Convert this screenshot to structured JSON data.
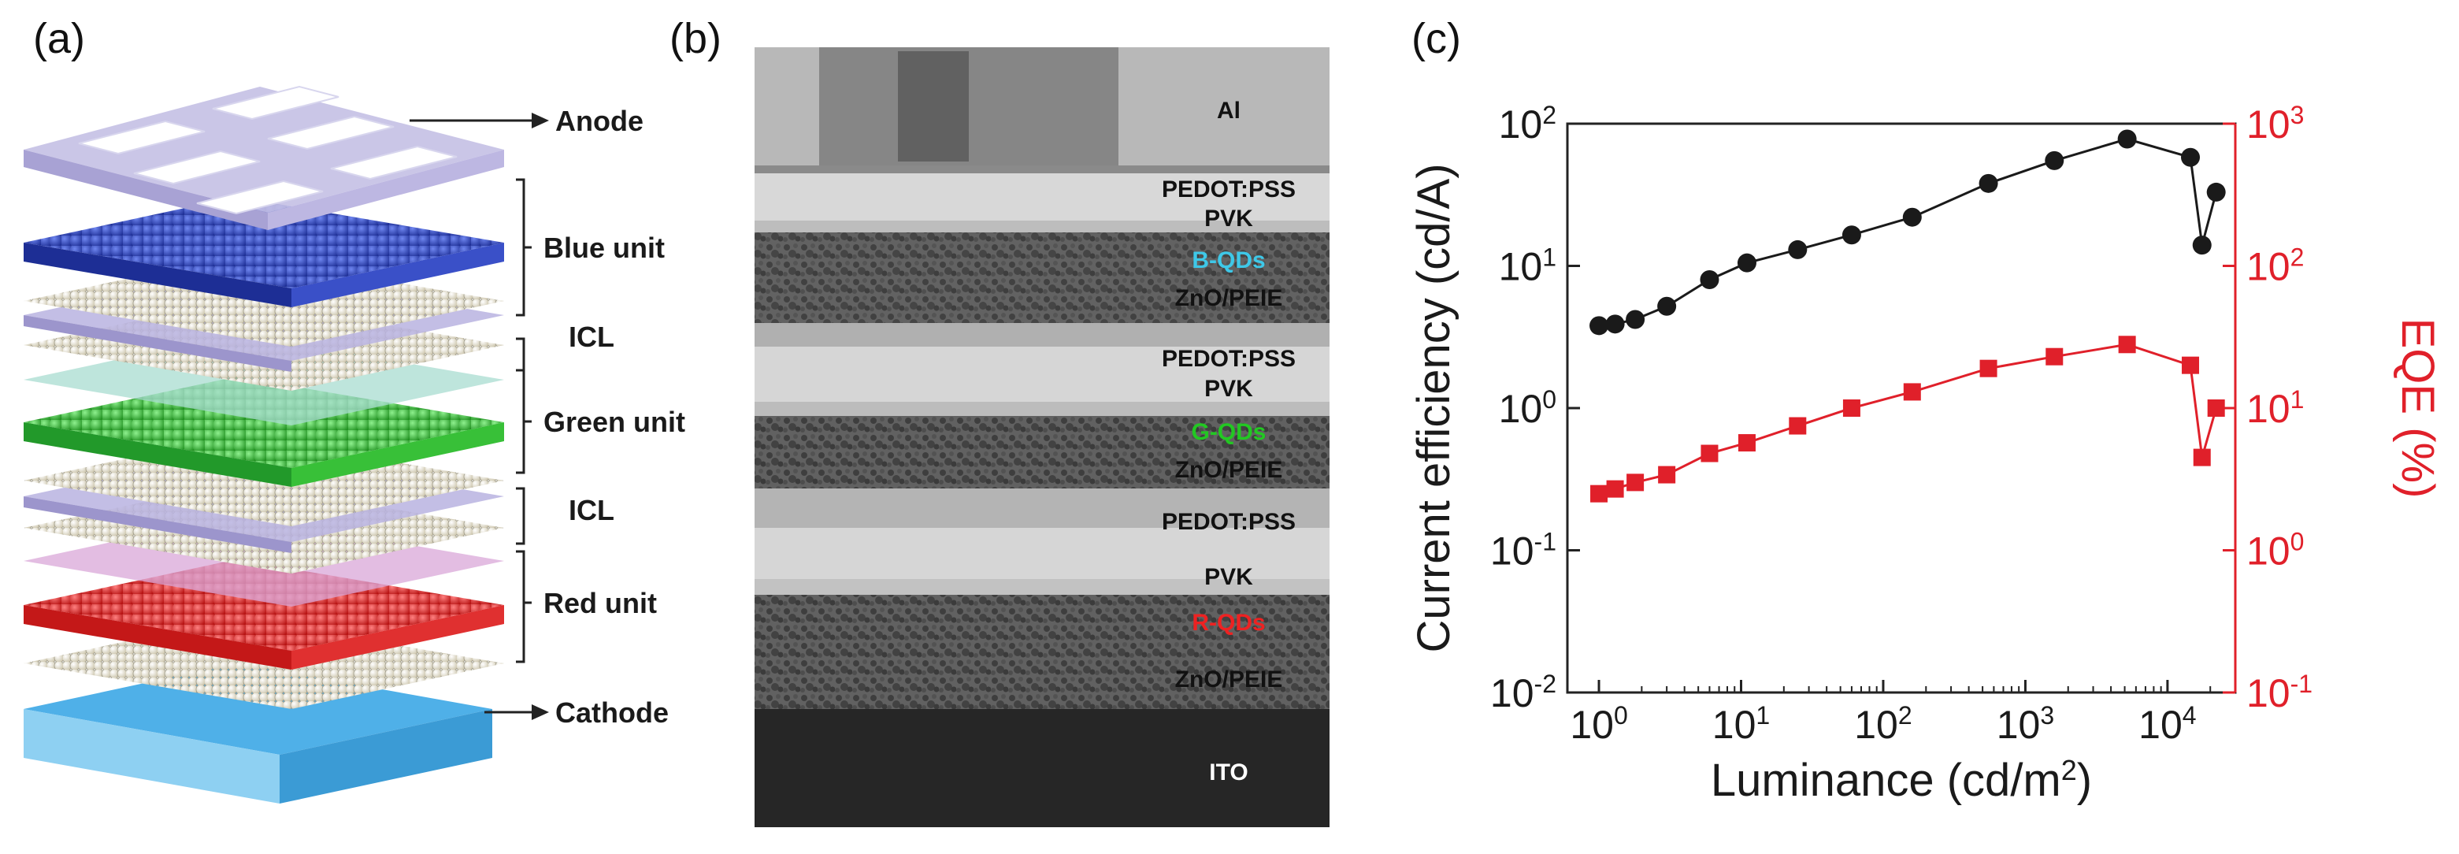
{
  "panel_a": {
    "label": "(a)",
    "layers": {
      "anode": "Anode",
      "blue": "Blue unit",
      "icl_top": "ICL",
      "green": "Green unit",
      "icl_bottom": "ICL",
      "red": "Red unit",
      "cathode": "Cathode"
    },
    "colors": {
      "blue": "#2a3fb5",
      "green": "#33b833",
      "red": "#e02020",
      "cathode": "#4fb0e8",
      "icl": "#b9b3e0"
    }
  },
  "panel_b": {
    "label": "(b)",
    "layers": {
      "al": "Al",
      "pedot_1": "PEDOT:PSS",
      "pvk_1": "PVK",
      "bqds": "B-QDs",
      "zno_1": "ZnO/PEIE",
      "pedot_2": "PEDOT:PSS",
      "pvk_2": "PVK",
      "gqds": "G-QDs",
      "zno_2": "ZnO/PEIE",
      "pedot_3": "PEDOT:PSS",
      "pvk_3": "PVK",
      "rqds": "R-QDs",
      "zno_3": "ZnO/PEIE",
      "ito": "ITO"
    },
    "colors": {
      "bqds": "#3ec8e8",
      "gqds": "#22c822",
      "rqds": "#ee2222"
    }
  },
  "panel_c": {
    "label": "(c)",
    "chart_data": {
      "type": "scatter",
      "title": "",
      "xlabel": "Luminance (cd/m",
      "xlabel_sup": "2",
      "xlabel_end": ")",
      "ylabel": "Current efficiency (cd/A)",
      "y2label": "EQE (%)",
      "xscale": "log",
      "yscale": "log",
      "xlim": [
        0.6,
        30000
      ],
      "ylim": [
        0.01,
        100
      ],
      "y2lim": [
        0.1,
        1000
      ],
      "x_ticks": [
        {
          "v": 1,
          "b": "10",
          "e": "0"
        },
        {
          "v": 10,
          "b": "10",
          "e": "1"
        },
        {
          "v": 100,
          "b": "10",
          "e": "2"
        },
        {
          "v": 1000,
          "b": "10",
          "e": "3"
        },
        {
          "v": 10000,
          "b": "10",
          "e": "4"
        }
      ],
      "y_ticks": [
        {
          "v": 0.01,
          "b": "10",
          "e": "-2"
        },
        {
          "v": 0.1,
          "b": "10",
          "e": "-1"
        },
        {
          "v": 1,
          "b": "10",
          "e": "0"
        },
        {
          "v": 10,
          "b": "10",
          "e": "1"
        },
        {
          "v": 100,
          "b": "10",
          "e": "2"
        }
      ],
      "y2_ticks": [
        {
          "v": 0.1,
          "b": "10",
          "e": "-1"
        },
        {
          "v": 1,
          "b": "10",
          "e": "0"
        },
        {
          "v": 10,
          "b": "10",
          "e": "1"
        },
        {
          "v": 100,
          "b": "10",
          "e": "2"
        },
        {
          "v": 1000,
          "b": "10",
          "e": "3"
        }
      ],
      "series": [
        {
          "name": "Current efficiency",
          "axis": "left",
          "marker": "circle",
          "color": "#1a1a1a",
          "points": [
            [
              1.0,
              3.8
            ],
            [
              1.3,
              3.9
            ],
            [
              1.8,
              4.2
            ],
            [
              3.0,
              5.2
            ],
            [
              6.0,
              8.0
            ],
            [
              11,
              10.5
            ],
            [
              25,
              13
            ],
            [
              60,
              16.5
            ],
            [
              160,
              22
            ],
            [
              550,
              38
            ],
            [
              1600,
              55
            ],
            [
              5200,
              78
            ],
            [
              14500,
              58
            ],
            [
              17500,
              14
            ],
            [
              22000,
              33
            ]
          ]
        },
        {
          "name": "EQE",
          "axis": "right",
          "marker": "square",
          "color": "#e0202a",
          "points": [
            [
              1.0,
              2.5
            ],
            [
              1.3,
              2.7
            ],
            [
              1.8,
              3.0
            ],
            [
              3.0,
              3.4
            ],
            [
              6.0,
              4.8
            ],
            [
              11,
              5.7
            ],
            [
              25,
              7.5
            ],
            [
              60,
              10
            ],
            [
              160,
              13
            ],
            [
              550,
              19
            ],
            [
              1600,
              23
            ],
            [
              5200,
              28
            ],
            [
              14500,
              20
            ],
            [
              17500,
              4.5
            ],
            [
              22000,
              10
            ]
          ]
        }
      ]
    }
  }
}
